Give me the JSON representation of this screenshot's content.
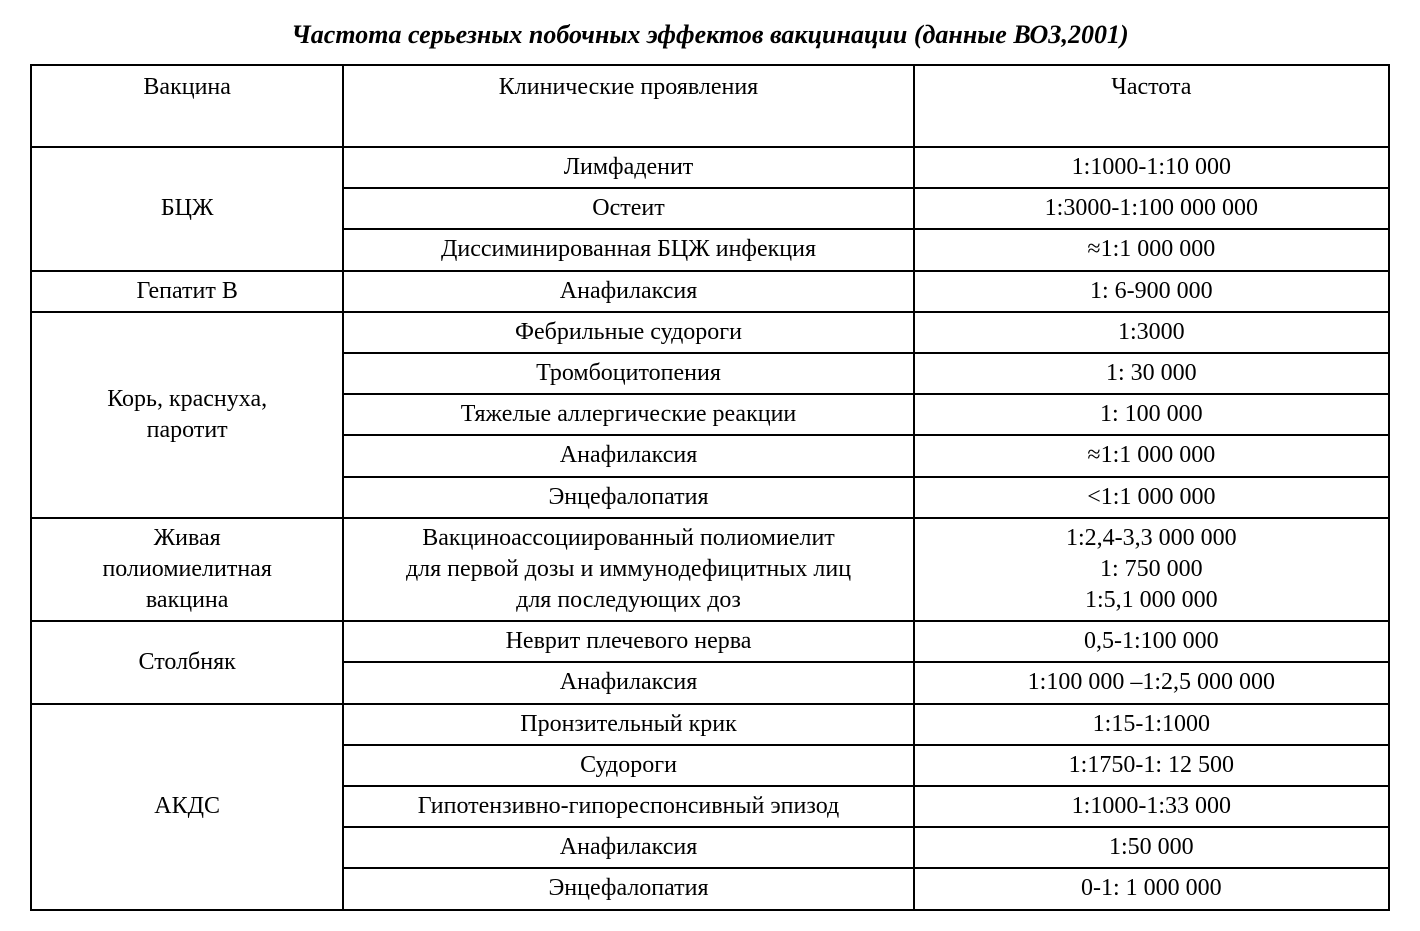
{
  "title": "Частота серьезных побочных эффектов вакцинации (данные ВОЗ,2001)",
  "headers": {
    "vaccine": "Вакцина",
    "manifest": "Клинические проявления",
    "frequency": "Частота"
  },
  "table": {
    "border_color": "#000000",
    "background_color": "#ffffff",
    "header_fontsize": 24,
    "cell_fontsize": 24,
    "title_fontsize": 26,
    "title_style": "bold italic",
    "columns": [
      "Вакцина",
      "Клинические проявления",
      "Частота"
    ],
    "column_widths_pct": [
      23,
      42,
      35
    ]
  },
  "rows": {
    "bcg": {
      "vaccine": "БЦЖ",
      "items": [
        {
          "manifest": "Лимфаденит",
          "frequency": "1:1000-1:10 000"
        },
        {
          "manifest": "Остеит",
          "frequency": "1:3000-1:100 000 000"
        },
        {
          "manifest": "Диссиминированная  БЦЖ инфекция",
          "frequency": "≈1:1 000 000"
        }
      ]
    },
    "hepb": {
      "vaccine": "Гепатит В",
      "items": [
        {
          "manifest": "Анафилаксия",
          "frequency": "1: 6-900 000"
        }
      ]
    },
    "mmr": {
      "vaccine": "Корь, краснуха,\nпаротит",
      "items": [
        {
          "manifest": "Фебрильные судороги",
          "frequency": "1:3000"
        },
        {
          "manifest": "Тромбоцитопения",
          "frequency": "1: 30 000"
        },
        {
          "manifest": "Тяжелые аллергические реакции",
          "frequency": "1: 100 000"
        },
        {
          "manifest": "Анафилаксия",
          "frequency": "≈1:1 000 000"
        },
        {
          "manifest": "Энцефалопатия",
          "frequency": "<1:1 000 000"
        }
      ]
    },
    "opv": {
      "vaccine": "Живая\nполиомиелитная\nвакцина",
      "manifest": "Вакциноассоциированный полиомиелит\nдля первой дозы и иммунодефицитных лиц\nдля последующих доз",
      "frequency": "1:2,4-3,3 000 000\n1: 750 000\n1:5,1 000 000"
    },
    "tetanus": {
      "vaccine": "Столбняк",
      "items": [
        {
          "manifest": "Неврит плечевого нерва",
          "frequency": "0,5-1:100 000"
        },
        {
          "manifest": "Анафилаксия",
          "frequency": "1:100 000 –1:2,5 000 000"
        }
      ]
    },
    "akds": {
      "vaccine": "АКДС",
      "items": [
        {
          "manifest": "Пронзительный крик",
          "frequency": "1:15-1:1000"
        },
        {
          "manifest": "Судороги",
          "frequency": "1:1750-1: 12 500"
        },
        {
          "manifest": "Гипотензивно-гипореспонсивный эпизод",
          "frequency": "1:1000-1:33 000"
        },
        {
          "manifest": "Анафилаксия",
          "frequency": "1:50 000"
        },
        {
          "manifest": "Энцефалопатия",
          "frequency": "0-1: 1 000 000"
        }
      ]
    }
  }
}
